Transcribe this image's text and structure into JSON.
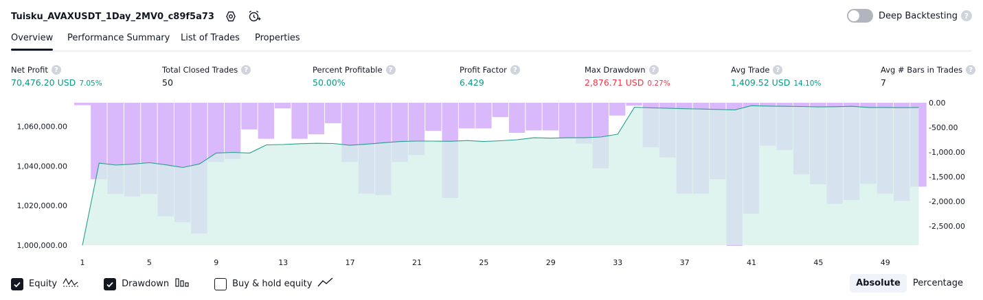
{
  "header": {
    "title": "Tuisku_AVAXUSDT_1Day_2MV0_c89f5a73",
    "deep_backtesting_label": "Deep Backtesting",
    "deep_backtesting_on": false,
    "help_glyph": "?"
  },
  "tabs": [
    {
      "label": "Overview",
      "active": true
    },
    {
      "label": "Performance Summary",
      "active": false
    },
    {
      "label": "List of Trades",
      "active": false
    },
    {
      "label": "Properties",
      "active": false
    }
  ],
  "stats": [
    {
      "label": "Net Profit",
      "value": "70,476.20 USD",
      "pct": "7.05%",
      "color": "green"
    },
    {
      "label": "Total Closed Trades",
      "value": "50",
      "pct": "",
      "color": "dark"
    },
    {
      "label": "Percent Profitable",
      "value": "50.00%",
      "pct": "",
      "color": "green"
    },
    {
      "label": "Profit Factor",
      "value": "6.429",
      "pct": "",
      "color": "green"
    },
    {
      "label": "Max Drawdown",
      "value": "2,876.71 USD",
      "pct": "0.27%",
      "color": "red"
    },
    {
      "label": "Avg Trade",
      "value": "1,409.52 USD",
      "pct": "14.10%",
      "color": "green"
    },
    {
      "label": "Avg # Bars in Trades",
      "value": "7",
      "pct": "",
      "color": "dark"
    }
  ],
  "chart_data": {
    "type": "line+bar",
    "x": [
      1,
      2,
      3,
      4,
      5,
      6,
      7,
      8,
      9,
      10,
      11,
      12,
      13,
      14,
      15,
      16,
      17,
      18,
      19,
      20,
      21,
      22,
      23,
      24,
      25,
      26,
      27,
      28,
      29,
      30,
      31,
      32,
      33,
      34,
      35,
      36,
      37,
      38,
      39,
      40,
      41,
      42,
      43,
      44,
      45,
      46,
      47,
      48,
      49,
      50,
      51
    ],
    "x_ticks": [
      "1",
      "5",
      "9",
      "13",
      "17",
      "21",
      "25",
      "29",
      "33",
      "37",
      "41",
      "45",
      "49"
    ],
    "series": [
      {
        "name": "Equity",
        "axis": "left",
        "values": [
          1000000,
          1041500,
          1040500,
          1041000,
          1041700,
          1040600,
          1039300,
          1041100,
          1046600,
          1046900,
          1046600,
          1050700,
          1050900,
          1051300,
          1051500,
          1051400,
          1050500,
          1051100,
          1051800,
          1052400,
          1052600,
          1052600,
          1052500,
          1052900,
          1052400,
          1052800,
          1053300,
          1054300,
          1054100,
          1054300,
          1054300,
          1054700,
          1056100,
          1069700,
          1069400,
          1069200,
          1069000,
          1068800,
          1068600,
          1068400,
          1070500,
          1070300,
          1070200,
          1070100,
          1069900,
          1070000,
          1070200,
          1069600,
          1069600,
          1069500,
          1069600
        ]
      },
      {
        "name": "Drawdown",
        "axis": "right",
        "values": [
          -50,
          -1550,
          -1850,
          -1900,
          -1850,
          -2300,
          -2420,
          -2650,
          -1200,
          -1140,
          -540,
          -730,
          -115,
          -730,
          -640,
          -415,
          -1200,
          -1840,
          -1870,
          -1200,
          -1060,
          -570,
          -1930,
          -520,
          -520,
          -290,
          -610,
          -560,
          -560,
          -730,
          -830,
          -1330,
          -260,
          -60,
          -900,
          -1110,
          -1840,
          -1840,
          -1550,
          -2900,
          -2250,
          -870,
          -960,
          -1450,
          -1650,
          -2050,
          -1970,
          -1640,
          -1840,
          -1990,
          -1700
        ]
      }
    ],
    "left_axis": {
      "ticks": [
        "1,000,000.00",
        "1,020,000.00",
        "1,040,000.00",
        "1,060,000.00"
      ],
      "ylim": [
        1000000,
        1072000
      ]
    },
    "right_axis": {
      "ticks": [
        "0.00",
        "-500.00",
        "-1,000.00",
        "-1,500.00",
        "-2,000.00",
        "-2,500.00"
      ],
      "ylim": [
        -2900,
        0
      ]
    },
    "colors": {
      "equity_line": "#22a08a",
      "equity_fill": "#d4f0e8",
      "drawdown_bar": "#d9b8fb"
    }
  },
  "legend": {
    "items": [
      {
        "label": "Equity",
        "checked": true,
        "icon": "equity-wave-icon"
      },
      {
        "label": "Drawdown",
        "checked": true,
        "icon": "drawdown-bars-icon"
      },
      {
        "label": "Buy & hold equity",
        "checked": false,
        "icon": "trend-line-icon"
      }
    ]
  },
  "mode": {
    "absolute": "Absolute",
    "percentage": "Percentage",
    "selected": "absolute"
  }
}
